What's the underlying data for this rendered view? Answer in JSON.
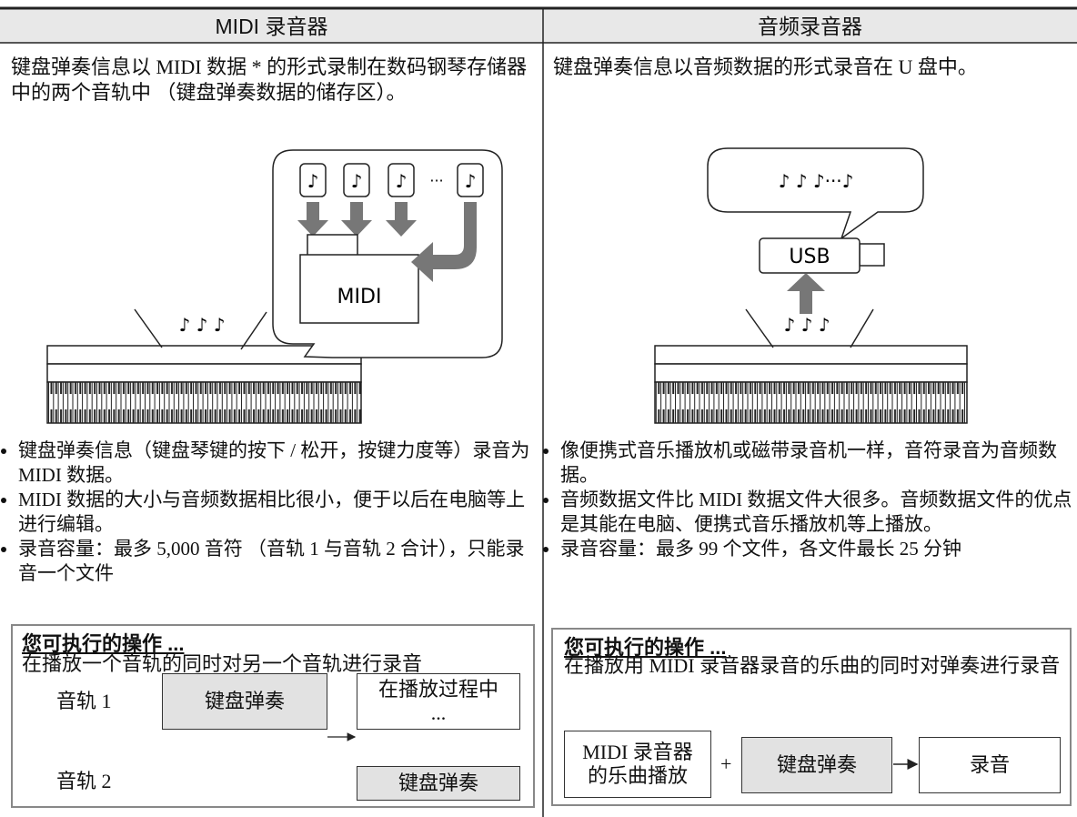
{
  "left": {
    "header": "MIDI 录音器",
    "intro": "键盘弹奏信息以 MIDI 数据 * 的形式录制在数码钢琴存储器中的两个音轨中 （键盘弹奏数据的储存区）。",
    "diagram": {
      "notes": [
        "♪",
        "♪",
        "♪",
        "♪"
      ],
      "ellipsis": "···",
      "folder": "MIDI",
      "keyboard_notes": "♪ ♪ ♪"
    },
    "bullets": [
      "键盘弹奏信息（键盘琴键的按下 / 松开，按键力度等）录音为 MIDI 数据。",
      "MIDI 数据的大小与音频数据相比很小，便于以后在电脑等上进行编辑。",
      "录音容量：最多 5,000 音符 （音轨 1 与音轨 2 合计），只能录音一个文件"
    ],
    "box": {
      "title": "您可执行的操作 ...",
      "text": "在播放一个音轨的同时对另一个音轨进行录音",
      "track1": "音轨 1",
      "track2": "音轨 2",
      "play": "键盘弹奏",
      "playing": "在播放过程中\n...",
      "record": "键盘弹奏"
    }
  },
  "right": {
    "header": "音频录音器",
    "intro": "键盘弹奏信息以音频数据的形式录音在 U 盘中。",
    "diagram": {
      "bubble": "♪ ♪ ♪···♪",
      "usb": "USB",
      "keyboard_notes": "♪ ♪ ♪"
    },
    "bullets": [
      "像便携式音乐播放机或磁带录音机一样，音符录音为音频数据。",
      "音频数据文件比 MIDI 数据文件大很多。音频数据文件的优点是其能在电脑、便携式音乐播放机等上播放。",
      "录音容量：最多 99 个文件，各文件最长 25 分钟"
    ],
    "box": {
      "title": "您可执行的操作 ...",
      "text": "在播放用 MIDI 录音器录音的乐曲的同时对弹奏进行录音",
      "source": "MIDI 录音器\n的乐曲播放",
      "plus": "+",
      "play": "键盘弹奏",
      "result": "录音"
    }
  }
}
